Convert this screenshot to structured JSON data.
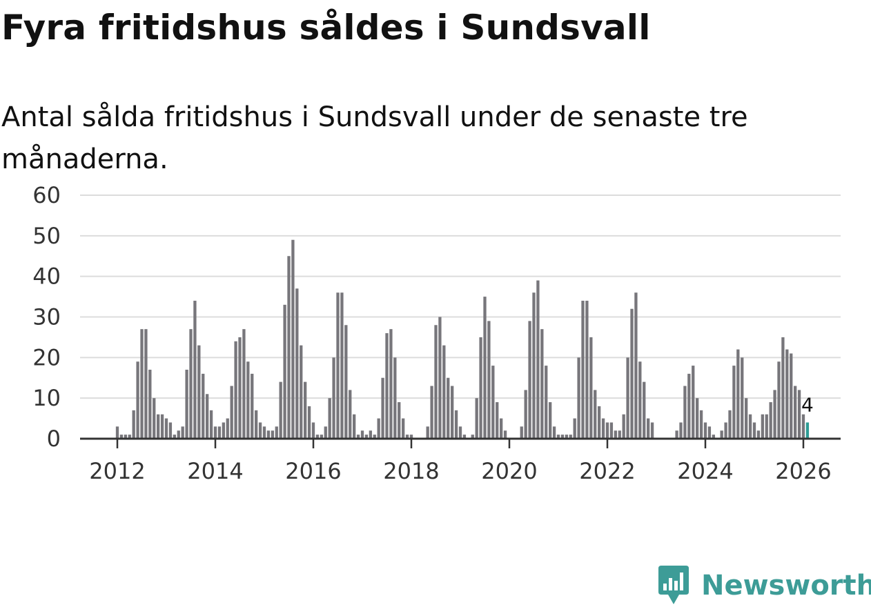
{
  "title": "Fyra fritidshus såldes i Sundsvall",
  "subtitle": "Antal sålda fritidshus i Sundsvall under de senaste tre månaderna.",
  "brand": {
    "name": "Newsworthy",
    "icon": "newsworthy-logo-icon",
    "color": "#3d9c97"
  },
  "chart_data": {
    "type": "bar",
    "title": "Fyra fritidshus såldes i Sundsvall",
    "subtitle": "Antal sålda fritidshus i Sundsvall under de senaste tre månaderna.",
    "xlabel": "",
    "ylabel": "",
    "ylim": [
      0,
      60
    ],
    "yticks": [
      0,
      10,
      20,
      30,
      40,
      50,
      60
    ],
    "xticks": [
      "2012",
      "2014",
      "2016",
      "2018",
      "2020",
      "2022",
      "2024",
      "2026"
    ],
    "grid": true,
    "bar_color": "#77767b",
    "highlight_color": "#2e9c95",
    "start": "2012-01",
    "values": [
      3,
      1,
      1,
      1,
      7,
      19,
      27,
      27,
      17,
      10,
      6,
      6,
      5,
      4,
      1,
      2,
      3,
      17,
      27,
      34,
      23,
      16,
      11,
      7,
      3,
      3,
      4,
      5,
      13,
      24,
      25,
      27,
      19,
      16,
      7,
      4,
      3,
      2,
      2,
      3,
      14,
      33,
      45,
      49,
      37,
      23,
      14,
      8,
      4,
      1,
      1,
      3,
      10,
      20,
      36,
      36,
      28,
      12,
      6,
      1,
      2,
      1,
      2,
      1,
      5,
      15,
      26,
      27,
      20,
      9,
      5,
      1,
      1,
      0,
      0,
      0,
      3,
      13,
      28,
      30,
      23,
      15,
      13,
      7,
      3,
      1,
      0,
      1,
      10,
      25,
      35,
      29,
      18,
      9,
      5,
      2,
      0,
      0,
      0,
      3,
      12,
      29,
      36,
      39,
      27,
      18,
      9,
      3,
      1,
      1,
      1,
      1,
      5,
      20,
      34,
      34,
      25,
      12,
      8,
      5,
      4,
      4,
      2,
      2,
      6,
      20,
      32,
      36,
      19,
      14,
      5,
      4,
      0,
      0,
      0,
      0,
      0,
      2,
      4,
      13,
      16,
      18,
      10,
      7,
      4,
      3,
      1,
      0,
      2,
      4,
      7,
      18,
      22,
      20,
      10,
      6,
      4,
      2,
      6,
      6,
      9,
      12,
      19,
      25,
      22,
      21,
      13,
      12,
      6,
      4
    ],
    "annotation": {
      "label": "4",
      "value": 4
    }
  }
}
